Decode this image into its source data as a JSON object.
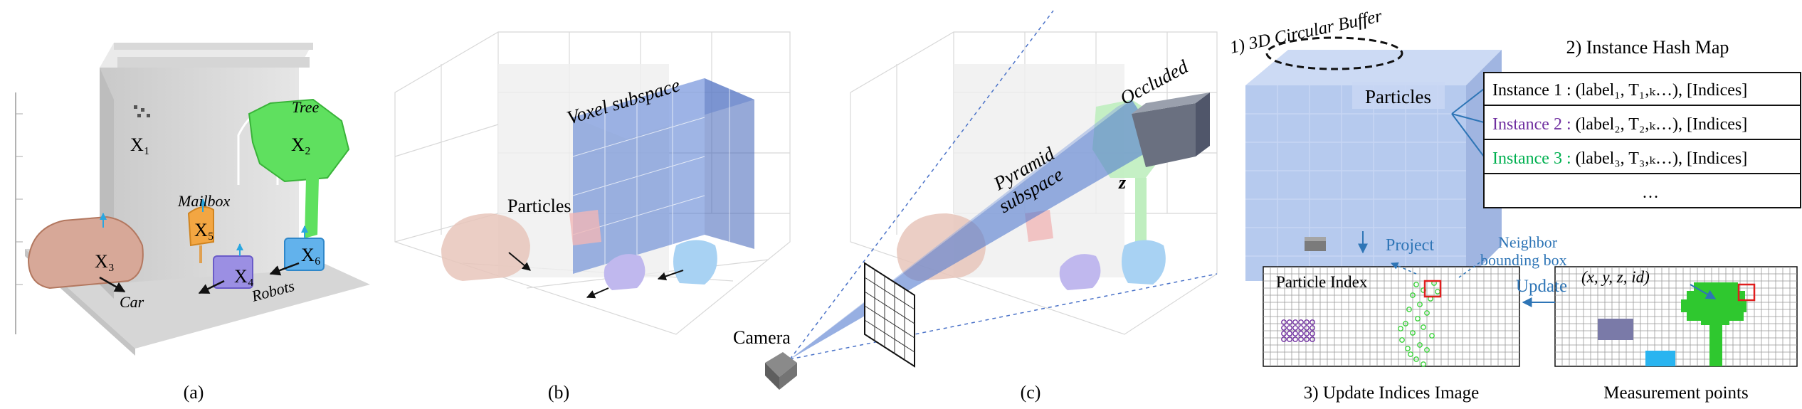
{
  "panels": {
    "a": {
      "caption": "(a)",
      "labels": {
        "x1": "X₁",
        "x2": "X₂",
        "x3": "X₃",
        "x4": "X₄",
        "x5": "X₅",
        "x6": "X₆"
      },
      "objects": {
        "tree": "Tree",
        "mailbox": "Mailbox",
        "car": "Car",
        "robots": "Robots"
      }
    },
    "b": {
      "caption": "(b)",
      "voxel_label": "Voxel subspace",
      "particles_label": "Particles"
    },
    "c": {
      "caption": "(c)",
      "pyramid_label_1": "Pyramid",
      "pyramid_label_2": "subspace",
      "occluded_label": "Occluded",
      "z_label": "z",
      "camera_label": "Camera"
    },
    "d": {
      "buffer_title": "1) 3D Circular Buffer",
      "particles_label": "Particles",
      "hash_title": "2) Instance Hash Map",
      "hash_rows": [
        {
          "instance": "Instance 1 :",
          "rest": " (label₁, T₁,ₖ…), [Indices]",
          "color": "#000000"
        },
        {
          "instance": "Instance 2 :",
          "rest": " (label₂, T₂,ₖ…), [Indices]",
          "color": "#7030a0"
        },
        {
          "instance": "Instance 3 :",
          "rest": " (label₃, T₃,ₖ…), [Indices]",
          "color": "#00b050"
        },
        {
          "instance": "…",
          "rest": "",
          "color": "#000000"
        }
      ],
      "project_label": "Project",
      "neighbor_label_1": "Neighbor",
      "neighbor_label_2": "bounding box",
      "update_label": "Update",
      "particle_index_label": "Particle Index",
      "measurement_tuple": "(x, y, z, id)",
      "indices_caption": "3) Update Indices Image",
      "measurement_caption": "Measurement points"
    }
  },
  "colors": {
    "blue_label": "#2e75b6",
    "voxel_blue": "#4a72c8",
    "green": "#3cd23c",
    "purple": "#7030a0",
    "red": "#e01e1e"
  }
}
